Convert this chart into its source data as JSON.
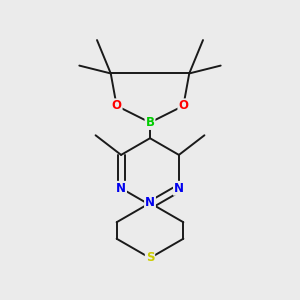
{
  "bg_color": "#ebebeb",
  "bond_color": "#1a1a1a",
  "bond_width": 1.4,
  "atom_colors": {
    "B": "#00cc00",
    "O": "#ff0000",
    "N": "#0000ee",
    "S": "#cccc00",
    "C": "#1a1a1a"
  },
  "font_size": 8.5
}
